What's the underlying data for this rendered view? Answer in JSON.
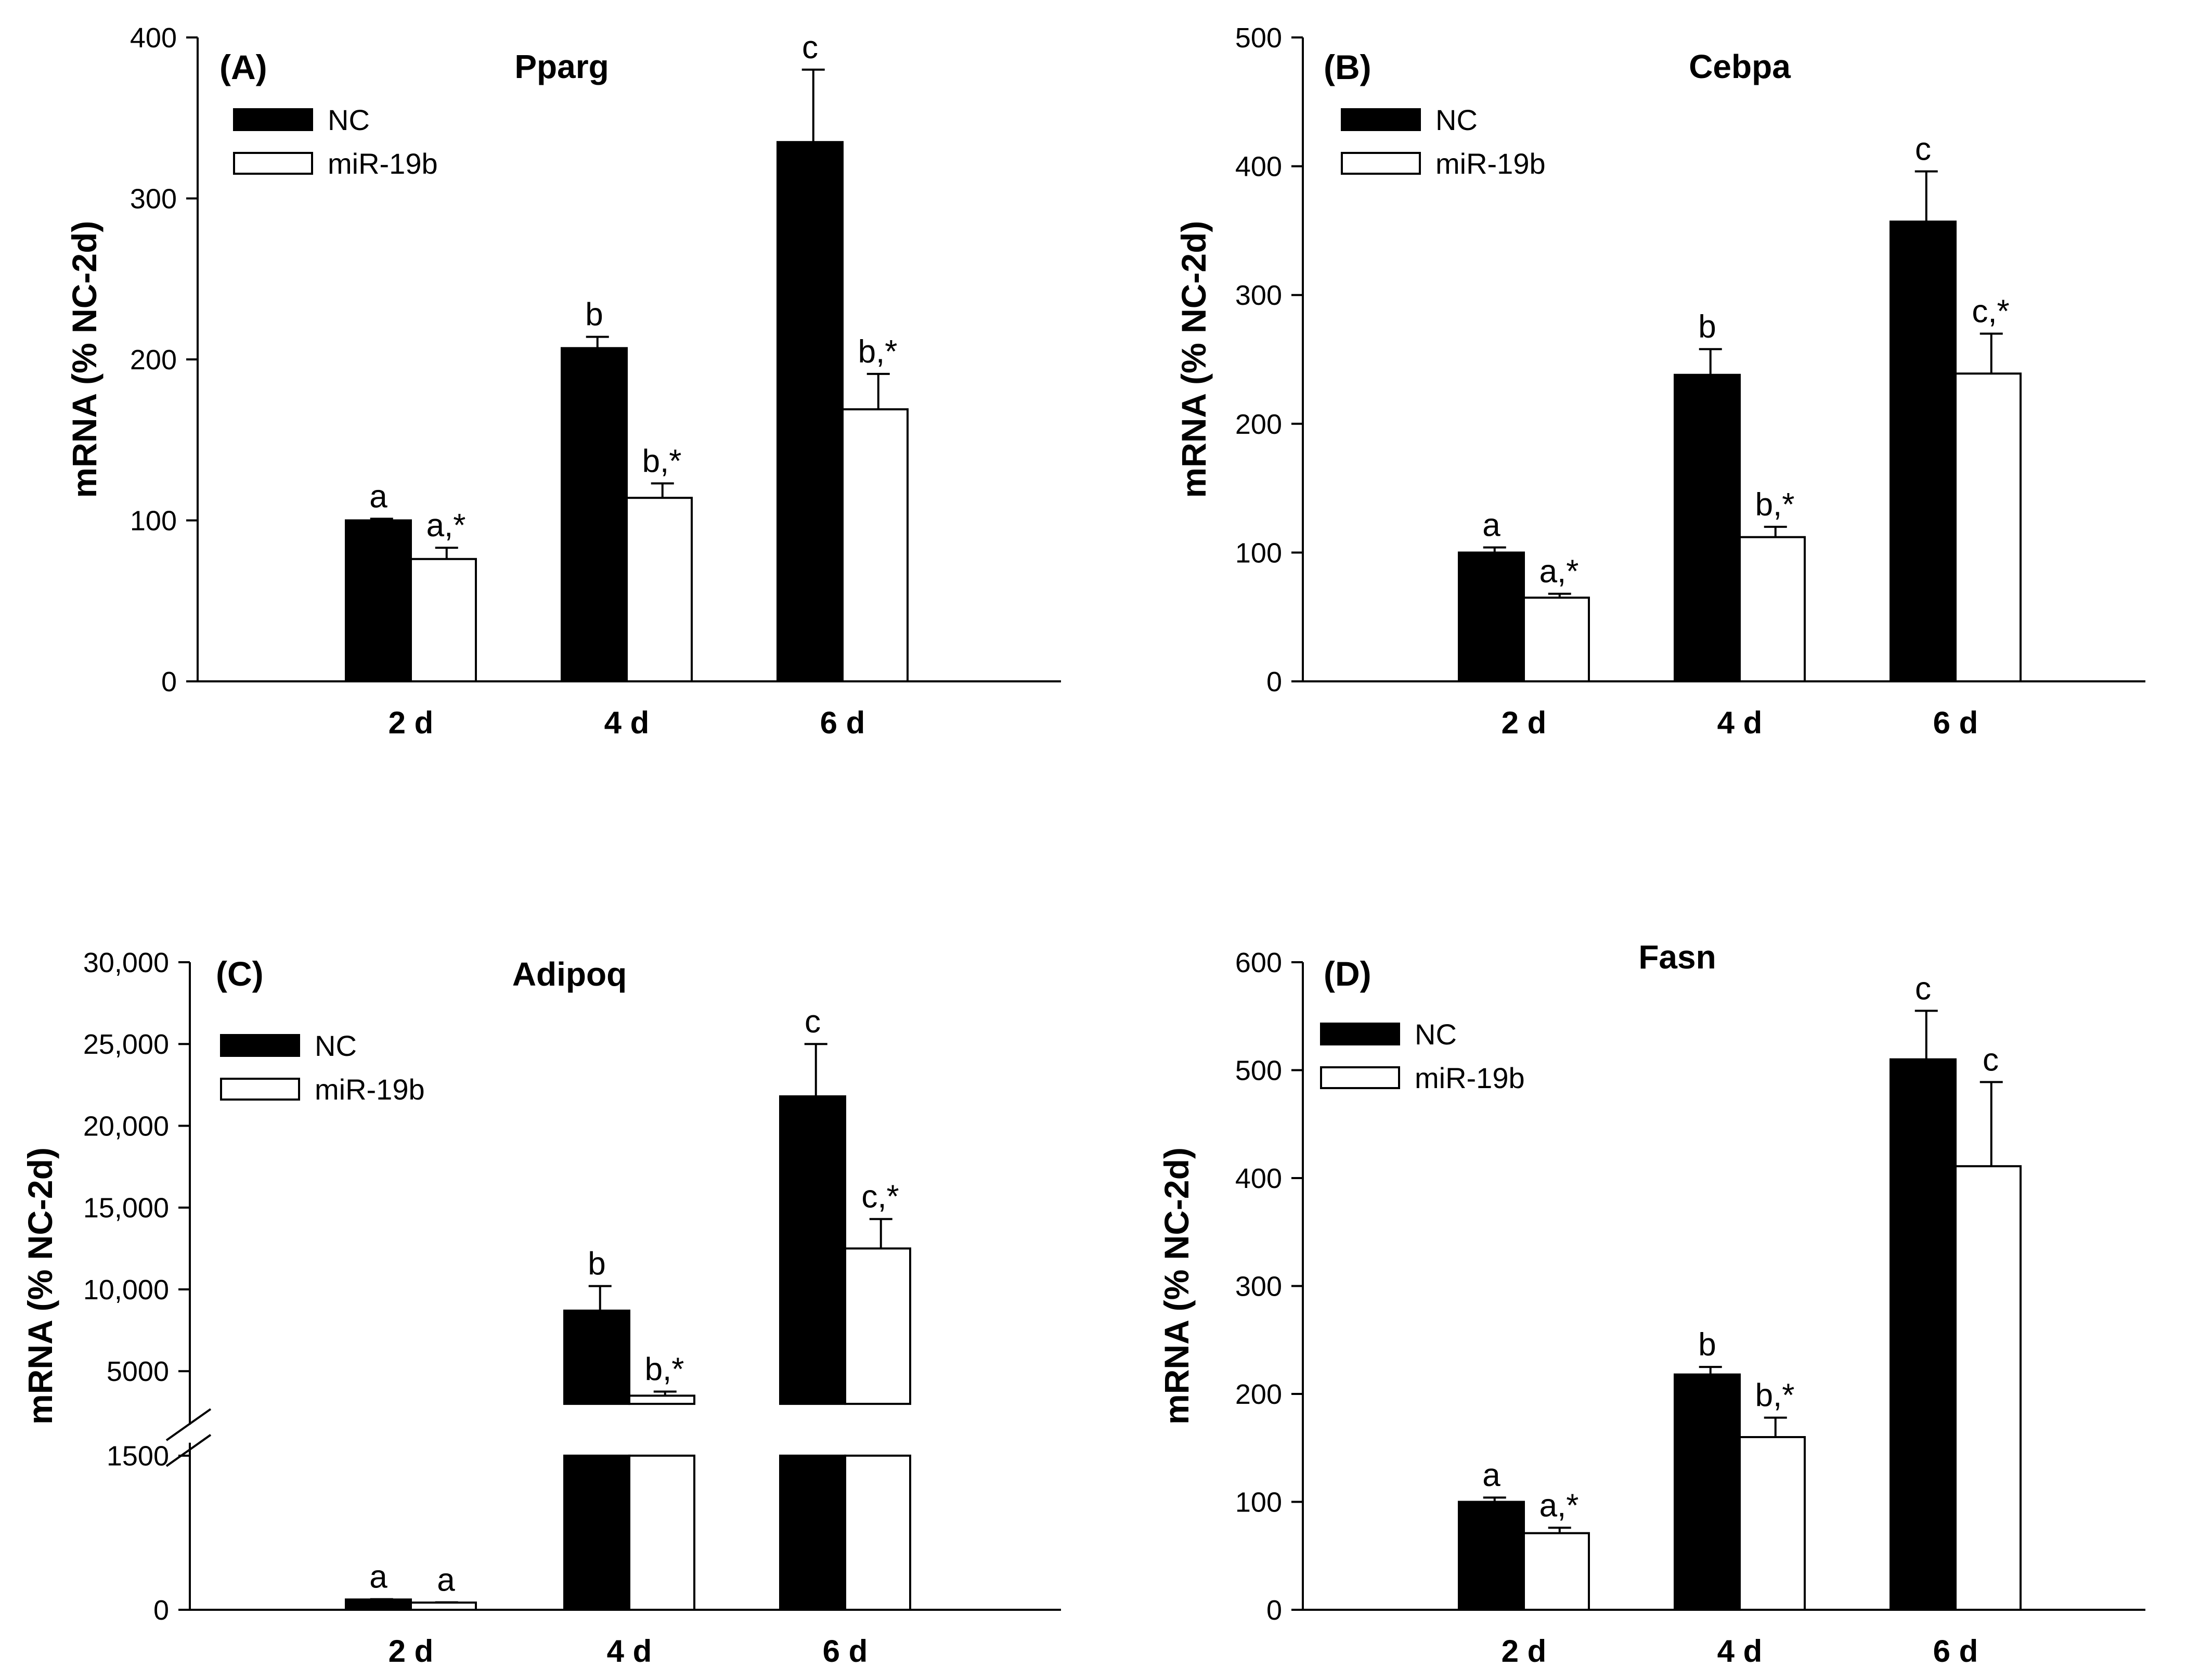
{
  "figure": {
    "ylabel": "mRNA (% NC-2d)",
    "legend": {
      "nc": "NC",
      "mir": "miR-19b"
    },
    "colors": {
      "nc": "#000000",
      "mir": "#ffffff",
      "axis": "#000000"
    }
  },
  "chart_data": [
    {
      "type": "bar",
      "panel": "(A)",
      "title": "Pparg",
      "ylabel": "mRNA (% NC-2d)",
      "categories": [
        "2 d",
        "4 d",
        "6 d"
      ],
      "ylim": [
        0,
        400
      ],
      "yticks": [
        0,
        100,
        200,
        300,
        400
      ],
      "ytick_labels": [
        "0",
        "100",
        "200",
        "300",
        "400"
      ],
      "series": [
        {
          "name": "NC",
          "values": [
            100,
            207,
            335
          ],
          "errors": [
            1,
            7,
            45
          ],
          "labels": [
            "a",
            "b",
            "c"
          ]
        },
        {
          "name": "miR-19b",
          "values": [
            76,
            114,
            169
          ],
          "errors": [
            7,
            9,
            22
          ],
          "labels": [
            "a,*",
            "b,*",
            "b,*"
          ]
        }
      ]
    },
    {
      "type": "bar",
      "panel": "(B)",
      "title": "Cebpa",
      "ylabel": "mRNA (% NC-2d)",
      "categories": [
        "2 d",
        "4 d",
        "6 d"
      ],
      "ylim": [
        0,
        500
      ],
      "yticks": [
        0,
        100,
        200,
        300,
        400,
        500
      ],
      "ytick_labels": [
        "0",
        "100",
        "200",
        "300",
        "400",
        "500"
      ],
      "series": [
        {
          "name": "NC",
          "values": [
            100,
            238,
            357
          ],
          "errors": [
            4,
            20,
            39
          ],
          "labels": [
            "a",
            "b",
            "c"
          ]
        },
        {
          "name": "miR-19b",
          "values": [
            65,
            112,
            239
          ],
          "errors": [
            3,
            8,
            31
          ],
          "labels": [
            "a,*",
            "b,*",
            "c,*"
          ]
        }
      ]
    },
    {
      "type": "bar",
      "panel": "(C)",
      "title": "Adipoq",
      "ylabel": "mRNA (% NC-2d)",
      "categories": [
        "2 d",
        "4 d",
        "6 d"
      ],
      "axis_break": {
        "lower": [
          0,
          1500
        ],
        "upper": [
          3000,
          30000
        ]
      },
      "yticks": [
        0,
        1500,
        5000,
        10000,
        15000,
        20000,
        25000,
        30000
      ],
      "ytick_labels": [
        "0",
        "1500",
        "5000",
        "10,000",
        "15,000",
        "20,000",
        "25,000",
        "30,000"
      ],
      "series": [
        {
          "name": "NC",
          "values": [
            100,
            8700,
            21800
          ],
          "errors": [
            3,
            1500,
            3200
          ],
          "labels": [
            "a",
            "b",
            "c"
          ]
        },
        {
          "name": "miR-19b",
          "values": [
            70,
            3500,
            12500
          ],
          "errors": [
            3,
            250,
            1800
          ],
          "labels": [
            "a",
            "b,*",
            "c,*"
          ]
        }
      ]
    },
    {
      "type": "bar",
      "panel": "(D)",
      "title": "Fasn",
      "ylabel": "mRNA (% NC-2d)",
      "categories": [
        "2 d",
        "4 d",
        "6 d"
      ],
      "ylim": [
        0,
        600
      ],
      "yticks": [
        0,
        100,
        200,
        300,
        400,
        500,
        600
      ],
      "ytick_labels": [
        "0",
        "100",
        "200",
        "300",
        "400",
        "500",
        "600"
      ],
      "series": [
        {
          "name": "NC",
          "values": [
            100,
            218,
            510
          ],
          "errors": [
            4,
            7,
            45
          ],
          "labels": [
            "a",
            "b",
            "c"
          ]
        },
        {
          "name": "miR-19b",
          "values": [
            71,
            160,
            411
          ],
          "errors": [
            5,
            18,
            78
          ],
          "labels": [
            "a,*",
            "b,*",
            "c"
          ]
        }
      ]
    }
  ]
}
